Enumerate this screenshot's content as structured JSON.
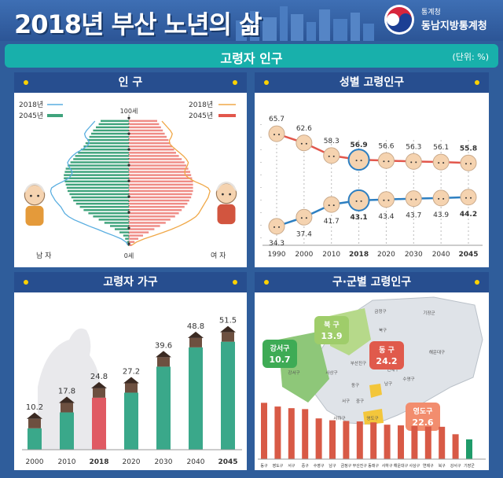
{
  "header": {
    "title": "2018년 부산 노년의 삶",
    "org_small": "통계청",
    "org_name": "동남지방통계청"
  },
  "section": {
    "title": "고령자 인구",
    "unit": "(단위: %)"
  },
  "panels": {
    "pyramid": "인 구",
    "gender": "성별 고령인구",
    "household": "고령자 가구",
    "district": "구·군별 고령인구"
  },
  "colors": {
    "male": "#3fa37c",
    "female": "#ef8b85",
    "male_line": "#5aaee0",
    "female_line": "#f0a848",
    "female_trend": "#e2574c",
    "male_trend": "#2d7fc1",
    "household_bar": "#3aa88a",
    "household_highlight": "#e05a63",
    "district_bar": "#d85a46",
    "district_bar_low": "#1f9b6a"
  },
  "chart_data": [
    {
      "type": "bar",
      "subtype": "population-pyramid",
      "title": "인 구",
      "legend_left": [
        {
          "label": "2018년",
          "icon": "thin-line",
          "color": "#5aaee0"
        },
        {
          "label": "2045년",
          "icon": "thick-line",
          "color": "#3fa37c"
        }
      ],
      "legend_right": [
        {
          "label": "2018년",
          "icon": "thin-line",
          "color": "#f0a848"
        },
        {
          "label": "2045년",
          "icon": "thick-line",
          "color": "#e2574c"
        }
      ],
      "top_label": "100세",
      "bottom_label": "0세",
      "male_label": "남 자",
      "female_label": "여 자",
      "male_2045": [
        0.1,
        0.2,
        0.4,
        0.6,
        1,
        1.5,
        2,
        2.6,
        3.2,
        3.8,
        4.3,
        4.8,
        5.2,
        5.6,
        5.9,
        6.1,
        6.3,
        6.5,
        6.6,
        6.7,
        6.8,
        6.9,
        6.9,
        6.8,
        6.7,
        6.5,
        6.2,
        5.9,
        5.7,
        5.4,
        5.1,
        4.8,
        4.6,
        4.4,
        4.2,
        4.0,
        3.8,
        3.5,
        3.2,
        3.0
      ],
      "female_2045": [
        0.3,
        0.6,
        1,
        1.5,
        2.1,
        2.7,
        3.3,
        3.9,
        4.4,
        4.9,
        5.3,
        5.6,
        5.9,
        6.2,
        6.4,
        6.6,
        6.7,
        6.8,
        6.8,
        6.8,
        6.8,
        6.7,
        6.6,
        6.5,
        6.3,
        6.1,
        5.9,
        5.6,
        5.3,
        5.0,
        4.8,
        4.6,
        4.4,
        4.2,
        4.0,
        3.8,
        3.6,
        3.4,
        3.2,
        3.0
      ],
      "male_2018": [
        0.1,
        0.3,
        0.8,
        1.6,
        2.5,
        3.3,
        4.2,
        5.0,
        5.8,
        6.4,
        6.8,
        7.0,
        7.2,
        7.5,
        7.8,
        8.0,
        8.2,
        8.3,
        8.2,
        7.7,
        7.0,
        6.4,
        6.1,
        6.0,
        6.2,
        6.4,
        6.5,
        6.3,
        6.0,
        5.6,
        5.0,
        4.5,
        4.2,
        4.3,
        4.6,
        4.7,
        4.5,
        4.2,
        3.9,
        3.6
      ],
      "female_2018": [
        0.3,
        0.8,
        1.6,
        2.6,
        3.6,
        4.5,
        5.3,
        6.0,
        6.6,
        7.1,
        7.4,
        7.6,
        7.8,
        8.0,
        8.2,
        8.4,
        8.5,
        8.6,
        8.4,
        7.8,
        7.0,
        6.4,
        6.0,
        5.9,
        6.0,
        6.2,
        6.3,
        6.1,
        5.8,
        5.4,
        5.0,
        4.6,
        4.3,
        4.3,
        4.5,
        4.6,
        4.4,
        4.1,
        3.8,
        3.5
      ]
    },
    {
      "type": "line",
      "title": "성별 고령인구",
      "categories": [
        "1990",
        "2000",
        "2010",
        "2018",
        "2020",
        "2030",
        "2040",
        "2045"
      ],
      "series": [
        {
          "values": [
            65.7,
            62.6,
            58.3,
            56.9,
            56.6,
            56.3,
            56.1,
            55.8
          ],
          "color": "#e2574c"
        },
        {
          "values": [
            34.3,
            37.4,
            41.7,
            43.1,
            43.4,
            43.7,
            43.9,
            44.2
          ],
          "color": "#2d7fc1"
        }
      ],
      "highlight": "2018"
    },
    {
      "type": "bar",
      "title": "고령자 가구",
      "categories": [
        "2000",
        "2010",
        "2018",
        "2020",
        "2030",
        "2040",
        "2045"
      ],
      "values": [
        10.2,
        17.8,
        24.8,
        27.2,
        39.6,
        48.8,
        51.5
      ],
      "highlight": "2018",
      "ylim": [
        0,
        60
      ]
    },
    {
      "type": "bar",
      "title": "구·군별 고령인구",
      "callouts": [
        {
          "name": "북 구",
          "value": "13.9",
          "color": "#9fcd6a"
        },
        {
          "name": "강서구",
          "value": "10.7",
          "color": "#3eab55"
        },
        {
          "name": "동 구",
          "value": "24.2",
          "color": "#e05a4c"
        },
        {
          "name": "영도구",
          "value": "22.6",
          "color": "#f28d6e"
        }
      ],
      "map_labels": [
        "기장군",
        "금정구",
        "북구",
        "동래구",
        "해운대구",
        "강서구",
        "사상구",
        "부산진구",
        "연제구",
        "수영구",
        "동구",
        "서구",
        "남구",
        "중구",
        "사하구",
        "영도구"
      ],
      "categories": [
        "동구",
        "영도구",
        "서구",
        "중구",
        "수영구",
        "남구",
        "금정구",
        "부산진구",
        "동래구",
        "사하구",
        "해운대구",
        "사상구",
        "연제구",
        "북구",
        "강서구",
        "기장군"
      ],
      "values": [
        24.2,
        22.6,
        21.9,
        21.5,
        17.5,
        16.7,
        16.4,
        16.2,
        15.8,
        14.8,
        14.5,
        14.2,
        14.0,
        13.9,
        10.7,
        8.5
      ]
    }
  ]
}
